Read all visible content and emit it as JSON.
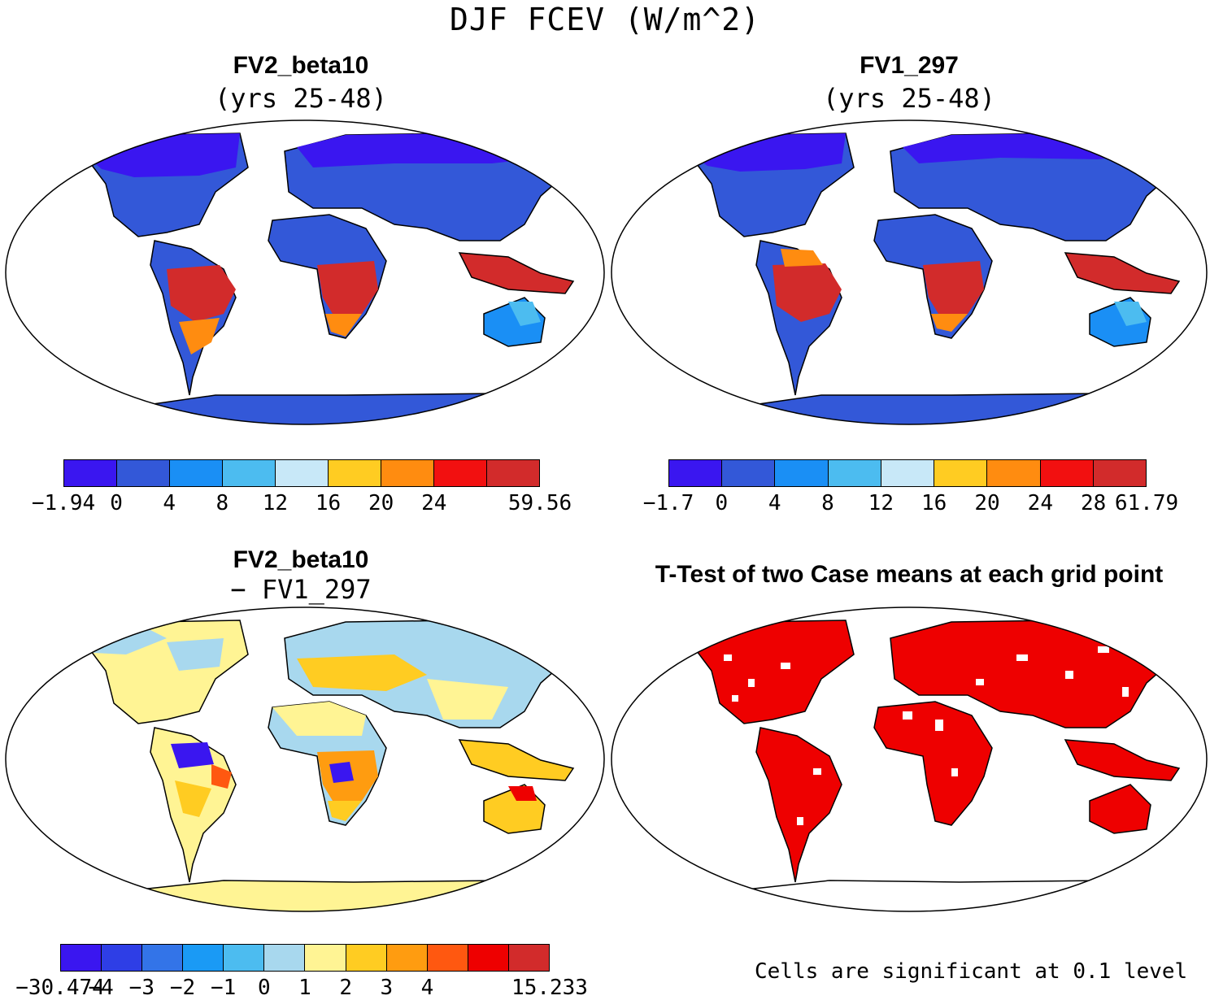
{
  "title": "DJF FCEV (W/m^2)",
  "panels": [
    {
      "id": "p1",
      "title": "FV2_beta10",
      "subtitle": "(yrs 25-48)",
      "colorbar": {
        "colors": [
          "#3a16f0",
          "#3358d8",
          "#1a8ff5",
          "#4cbcf0",
          "#c8e8f8",
          "#ffcc22",
          "#ff8c10",
          "#f21010",
          "#d22b2b"
        ],
        "labels": [
          "−1.94",
          "0",
          "4",
          "8",
          "12",
          "16",
          "20",
          "24",
          "",
          "59.56"
        ]
      }
    },
    {
      "id": "p2",
      "title": "FV1_297",
      "subtitle": "(yrs 25-48)",
      "colorbar": {
        "colors": [
          "#3a16f0",
          "#3358d8",
          "#1a8ff5",
          "#4cbcf0",
          "#c8e8f8",
          "#ffcc22",
          "#ff8c10",
          "#f21010",
          "#d22b2b"
        ],
        "labels": [
          "−1.7",
          "0",
          "4",
          "8",
          "12",
          "16",
          "20",
          "24",
          "28",
          "61.79"
        ]
      }
    },
    {
      "id": "p3",
      "title": "FV2_beta10",
      "subtitle": "− FV1_297",
      "colorbar": {
        "colors": [
          "#3a16f0",
          "#2e3ee6",
          "#3374e8",
          "#1a9af5",
          "#4cbcf0",
          "#a8d8ee",
          "#fff494",
          "#ffcc22",
          "#ff9c10",
          "#ff5810",
          "#ee0000",
          "#d22b2b"
        ],
        "labels": [
          "−30.474",
          "−4",
          "−3",
          "−2",
          "−1",
          "0",
          "1",
          "2",
          "3",
          "4",
          "",
          "",
          "15.233"
        ]
      }
    },
    {
      "id": "p4",
      "title": "T-Test of two Case means at each grid point",
      "note": "Cells are significant at 0.1 level"
    }
  ]
}
